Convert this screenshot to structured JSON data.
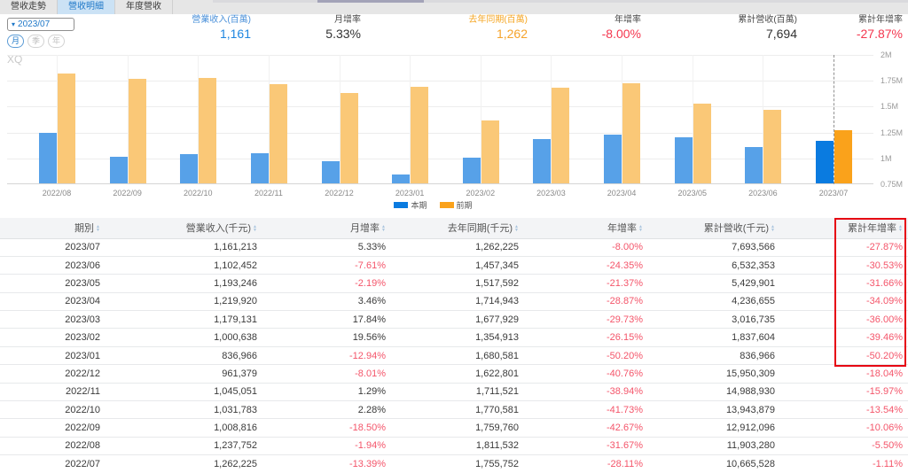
{
  "tabs": [
    {
      "name": "revenue-trend",
      "label": "營收走勢",
      "active": false
    },
    {
      "name": "revenue-detail",
      "label": "營收明細",
      "active": true
    },
    {
      "name": "annual-revenue",
      "label": "年度營收",
      "active": false
    }
  ],
  "controls": {
    "period_value": "2023/07",
    "freq_buttons": [
      {
        "name": "month",
        "label": "月",
        "active": true
      },
      {
        "name": "quarter",
        "label": "季",
        "active": false
      },
      {
        "name": "year",
        "label": "年",
        "active": false
      }
    ]
  },
  "stats": [
    {
      "name": "monthly-revenue",
      "label": "營業收入(百萬)",
      "value": "1,161",
      "color": "blue"
    },
    {
      "name": "mom-growth",
      "label": "月增率",
      "value": "5.33%",
      "color": "dark"
    },
    {
      "name": "last-year-same-period",
      "label": "去年同期(百萬)",
      "value": "1,262",
      "color": "orange"
    },
    {
      "name": "yoy-growth",
      "label": "年增率",
      "value": "-8.00%",
      "color": "red"
    },
    {
      "name": "cumulative-revenue",
      "label": "累計營收(百萬)",
      "value": "7,694",
      "color": "dark"
    },
    {
      "name": "cumulative-yoy-growth",
      "label": "累計年增率",
      "value": "-27.87%",
      "color": "red"
    }
  ],
  "chart_data": {
    "type": "bar",
    "watermark": "XQ",
    "categories": [
      "2022/08",
      "2022/09",
      "2022/10",
      "2022/11",
      "2022/12",
      "2023/01",
      "2023/02",
      "2023/03",
      "2023/04",
      "2023/05",
      "2023/06",
      "2023/07"
    ],
    "series": [
      {
        "name": "本期",
        "color": "#57a1e8",
        "highlight_color": "#0a7be0",
        "values": [
          1237752,
          1008816,
          1031783,
          1045051,
          961379,
          836966,
          1000638,
          1179131,
          1219920,
          1193246,
          1102452,
          1161213
        ]
      },
      {
        "name": "前期",
        "color": "#fac877",
        "highlight_color": "#faa21b",
        "values": [
          1811532,
          1759760,
          1770581,
          1711521,
          1622801,
          1680581,
          1354913,
          1677929,
          1714943,
          1517592,
          1457345,
          1262225
        ]
      }
    ],
    "highlight_index": 11,
    "ylim": [
      750000,
      2000000
    ],
    "yticks": [
      "2M",
      "1.75M",
      "1.5M",
      "1.25M",
      "1M",
      "0.75M"
    ],
    "legend_position": "bottom-center",
    "grid": true
  },
  "table": {
    "headers": [
      "期別",
      "營業收入(千元)",
      "月增率",
      "去年同期(千元)",
      "年增率",
      "累計營收(千元)",
      "累計年增率"
    ],
    "rows": [
      [
        "2023/07",
        "1,161,213",
        "5.33%",
        "1,262,225",
        "-8.00%",
        "7,693,566",
        "-27.87%"
      ],
      [
        "2023/06",
        "1,102,452",
        "-7.61%",
        "1,457,345",
        "-24.35%",
        "6,532,353",
        "-30.53%"
      ],
      [
        "2023/05",
        "1,193,246",
        "-2.19%",
        "1,517,592",
        "-21.37%",
        "5,429,901",
        "-31.66%"
      ],
      [
        "2023/04",
        "1,219,920",
        "3.46%",
        "1,714,943",
        "-28.87%",
        "4,236,655",
        "-34.09%"
      ],
      [
        "2023/03",
        "1,179,131",
        "17.84%",
        "1,677,929",
        "-29.73%",
        "3,016,735",
        "-36.00%"
      ],
      [
        "2023/02",
        "1,000,638",
        "19.56%",
        "1,354,913",
        "-26.15%",
        "1,837,604",
        "-39.46%"
      ],
      [
        "2023/01",
        "836,966",
        "-12.94%",
        "1,680,581",
        "-50.20%",
        "836,966",
        "-50.20%"
      ],
      [
        "2022/12",
        "961,379",
        "-8.01%",
        "1,622,801",
        "-40.76%",
        "15,950,309",
        "-18.04%"
      ],
      [
        "2022/11",
        "1,045,051",
        "1.29%",
        "1,711,521",
        "-38.94%",
        "14,988,930",
        "-15.97%"
      ],
      [
        "2022/10",
        "1,031,783",
        "2.28%",
        "1,770,581",
        "-41.73%",
        "13,943,879",
        "-13.54%"
      ],
      [
        "2022/09",
        "1,008,816",
        "-18.50%",
        "1,759,760",
        "-42.67%",
        "12,912,096",
        "-10.06%"
      ],
      [
        "2022/08",
        "1,237,752",
        "-1.94%",
        "1,811,532",
        "-31.67%",
        "11,903,280",
        "-5.50%"
      ],
      [
        "2022/07",
        "1,262,225",
        "-13.39%",
        "1,755,752",
        "-28.11%",
        "10,665,528",
        "-1.11%"
      ]
    ],
    "highlight_column_index": 6,
    "highlight_row_count": 7
  }
}
